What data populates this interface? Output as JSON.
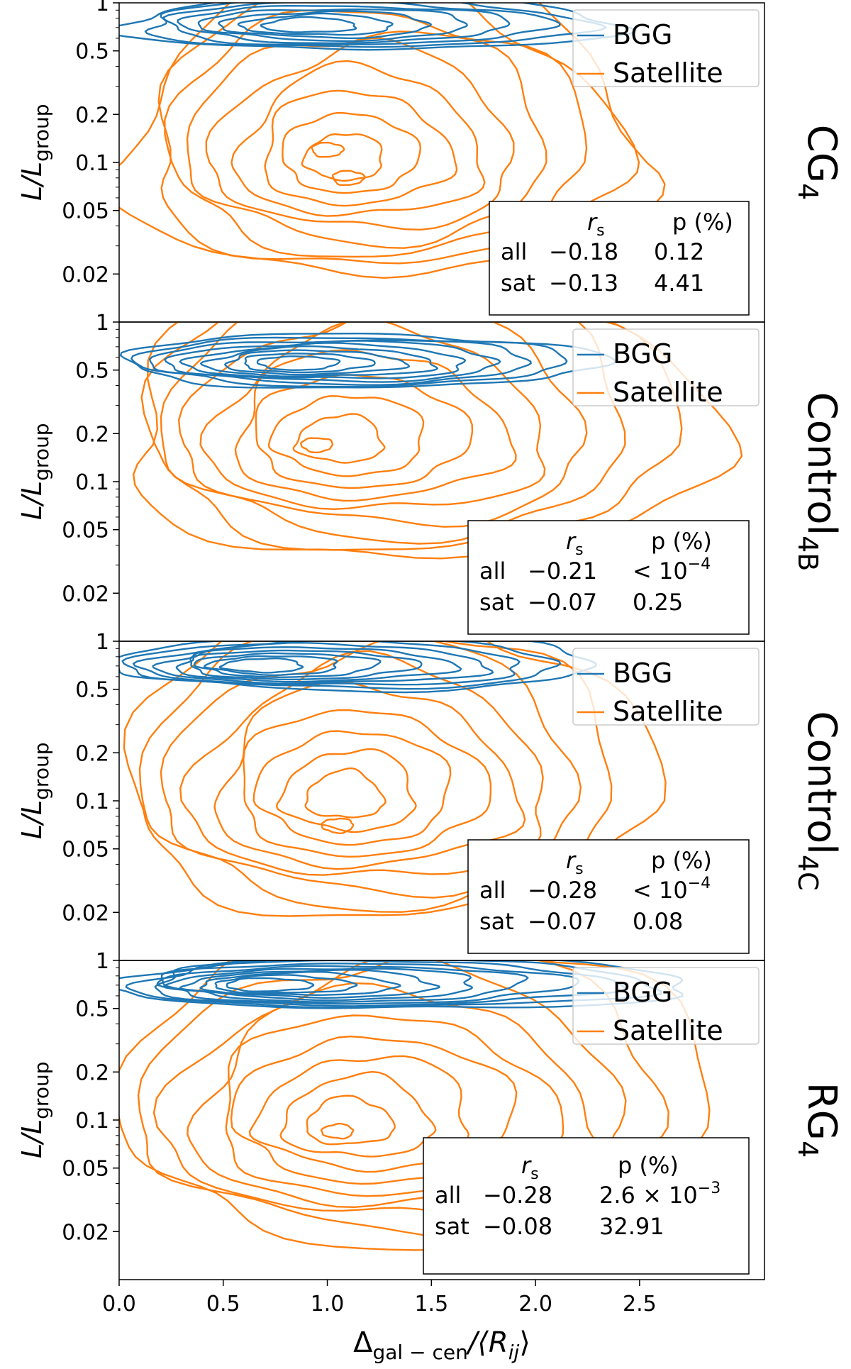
{
  "chart_data": {
    "type": "contour",
    "x_axis": {
      "label_main": "Δ",
      "label_sub": "gal − cen",
      "label_rest": "/⟨R",
      "label_rest_sub": "ij",
      "label_close": "⟩",
      "lim": [
        0,
        3.1
      ],
      "ticks": [
        0.0,
        0.5,
        1.0,
        1.5,
        2.0,
        2.5
      ],
      "tick_labels": [
        "0.0",
        "0.5",
        "1.0",
        "1.5",
        "2.0",
        "2.5"
      ]
    },
    "y_axis": {
      "label_main": "L/L",
      "label_sub": "group",
      "scale": "log",
      "lim": [
        0.01,
        1.0
      ],
      "ticks": [
        1,
        0.5,
        0.2,
        0.1,
        0.05,
        0.02
      ],
      "tick_labels": [
        "1",
        "0.5",
        "0.2",
        "0.1",
        "0.05",
        "0.02"
      ]
    },
    "legend": {
      "placement": "top-right",
      "entries": [
        "BGG",
        "Satellite"
      ]
    },
    "colors": {
      "BGG": "#1f77b4",
      "Satellite": "#ff7f0e"
    },
    "table_headers": {
      "rs_main": "r",
      "rs_sub": "s",
      "p": "p (%)"
    },
    "panels": [
      {
        "name": "CG",
        "name_sub": "4",
        "bgg": {
          "x_center": 0.85,
          "y_center": 0.72,
          "sx": 0.42,
          "sy": 0.07,
          "x_extent": 2.4,
          "levels": 8
        },
        "satellite": {
          "x_center": 1.05,
          "y_center": 0.1,
          "sx": 0.5,
          "sy": 0.45,
          "x_extent": 2.45,
          "levels": 9,
          "peaks": [
            [
              1.0,
              0.12
            ],
            [
              1.1,
              0.08
            ]
          ]
        },
        "stats": {
          "rows": [
            {
              "label": "all",
              "rs": "−0.18",
              "p": "0.12",
              "p_exp": ""
            },
            {
              "label": "sat",
              "rs": "−0.13",
              "p": "4.41",
              "p_exp": ""
            }
          ]
        }
      },
      {
        "name": "Control",
        "name_sub": "4B",
        "bgg": {
          "x_center": 0.8,
          "y_center": 0.55,
          "sx": 0.42,
          "sy": 0.1,
          "x_extent": 2.3,
          "levels": 9
        },
        "satellite": {
          "x_center": 1.0,
          "y_center": 0.17,
          "sx": 0.62,
          "sy": 0.35,
          "x_extent": 2.75,
          "levels": 9,
          "peaks": [
            [
              0.95,
              0.17
            ]
          ]
        },
        "stats": {
          "rows": [
            {
              "label": "all",
              "rs": "−0.21",
              "p": "< 10",
              "p_exp": "−4"
            },
            {
              "label": "sat",
              "rs": "−0.07",
              "p": "0.25",
              "p_exp": ""
            }
          ]
        }
      },
      {
        "name": "Control",
        "name_sub": "4C",
        "bgg": {
          "x_center": 0.6,
          "y_center": 0.7,
          "sx": 0.4,
          "sy": 0.07,
          "x_extent": 2.3,
          "levels": 9
        },
        "satellite": {
          "x_center": 1.05,
          "y_center": 0.1,
          "sx": 0.6,
          "sy": 0.5,
          "x_extent": 2.45,
          "levels": 9,
          "peaks": [
            [
              1.05,
              0.07
            ]
          ]
        },
        "stats": {
          "rows": [
            {
              "label": "all",
              "rs": "−0.28",
              "p": "< 10",
              "p_exp": "−4"
            },
            {
              "label": "sat",
              "rs": "−0.07",
              "p": "0.08",
              "p_exp": ""
            }
          ]
        }
      },
      {
        "name": "RG",
        "name_sub": "4",
        "bgg": {
          "x_center": 0.6,
          "y_center": 0.7,
          "sx": 0.42,
          "sy": 0.08,
          "x_extent": 2.75,
          "levels": 10
        },
        "satellite": {
          "x_center": 1.05,
          "y_center": 0.09,
          "sx": 0.62,
          "sy": 0.5,
          "x_extent": 2.75,
          "levels": 9,
          "peaks": [
            [
              1.05,
              0.085
            ]
          ]
        },
        "stats": {
          "rows": [
            {
              "label": "all",
              "rs": "−0.28",
              "p": "2.6 × 10",
              "p_exp": "−3"
            },
            {
              "label": "sat",
              "rs": "−0.08",
              "p": "32.91",
              "p_exp": ""
            }
          ]
        }
      }
    ]
  }
}
